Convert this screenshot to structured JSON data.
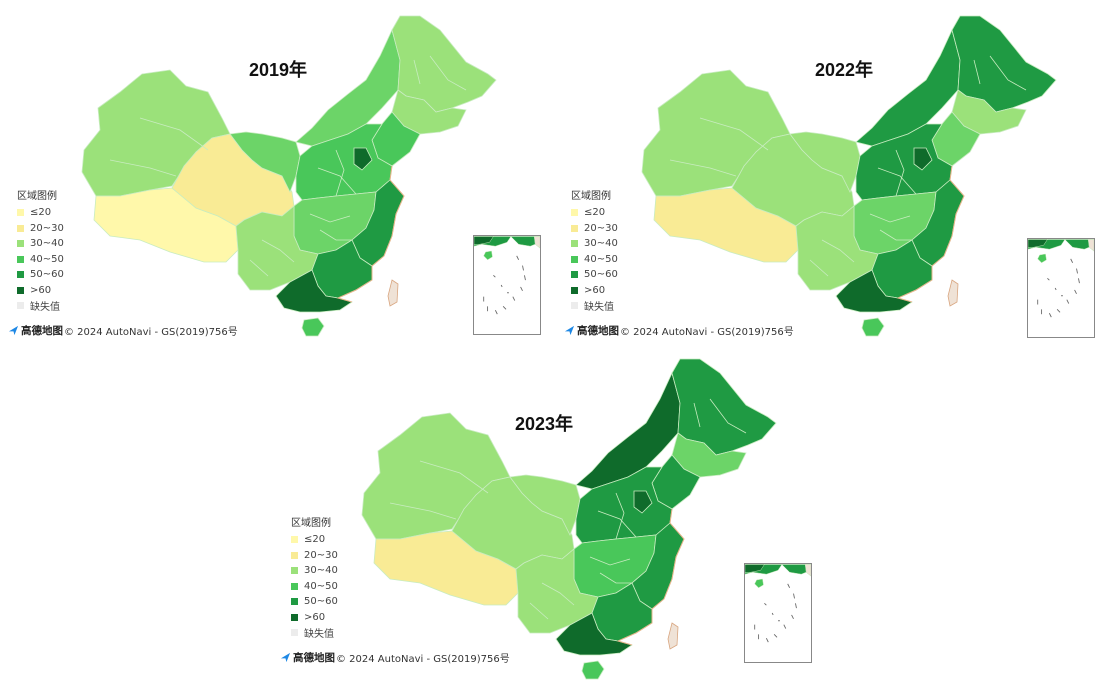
{
  "maps": [
    {
      "title": "2019年",
      "colors": {
        "west": "#9be17a",
        "tibet": "#fff8aa",
        "qinghai": "#f9eb95",
        "gansu": "#6cd468",
        "north": "#49c75a",
        "neimeng": "#6cd468",
        "heilongjiang": "#9be17a",
        "jilin": "#9be17a",
        "liaoning": "#49c75a",
        "central": "#6cd468",
        "southwest": "#9be17a",
        "east": "#1f9a43",
        "guangdong": "#1f9a43",
        "south": "#0f6b2b",
        "hainan": "#49c75a",
        "beijing": "#0f6b2b",
        "taiwan": "#efe2d6"
      }
    },
    {
      "title": "2022年",
      "colors": {
        "west": "#9be17a",
        "tibet": "#f9eb95",
        "qinghai": "#9be17a",
        "gansu": "#9be17a",
        "north": "#1f9a43",
        "neimeng": "#1f9a43",
        "heilongjiang": "#1f9a43",
        "jilin": "#9be17a",
        "liaoning": "#6cd468",
        "central": "#6cd468",
        "southwest": "#9be17a",
        "east": "#1f9a43",
        "guangdong": "#1f9a43",
        "south": "#0f6b2b",
        "hainan": "#49c75a",
        "beijing": "#0f6b2b",
        "taiwan": "#efe2d6"
      }
    },
    {
      "title": "2023年",
      "colors": {
        "west": "#9be17a",
        "tibet": "#f9eb95",
        "qinghai": "#9be17a",
        "gansu": "#9be17a",
        "north": "#1f9a43",
        "neimeng": "#0f6b2b",
        "heilongjiang": "#1f9a43",
        "jilin": "#6cd468",
        "liaoning": "#1f9a43",
        "central": "#49c75a",
        "southwest": "#9be17a",
        "east": "#1f9a43",
        "guangdong": "#1f9a43",
        "south": "#0f6b2b",
        "hainan": "#49c75a",
        "beijing": "#0f6b2b",
        "taiwan": "#efe2d6"
      }
    }
  ],
  "legend": {
    "title": "区域图例",
    "items": [
      {
        "label": "≤20",
        "color": "#fff8aa"
      },
      {
        "label": "20~30",
        "color": "#f9eb95"
      },
      {
        "label": "30~40",
        "color": "#9be17a"
      },
      {
        "label": "40~50",
        "color": "#49c75a"
      },
      {
        "label": "50~60",
        "color": "#1f9a43"
      },
      {
        "label": ">60",
        "color": "#0f6b2b"
      },
      {
        "label": "缺失值",
        "color": "#ececec"
      }
    ]
  },
  "attribution": {
    "logo_text": "高德地图",
    "text": "© 2024 AutoNavi - GS(2019)756号",
    "icon": "amap-arrow-icon"
  }
}
